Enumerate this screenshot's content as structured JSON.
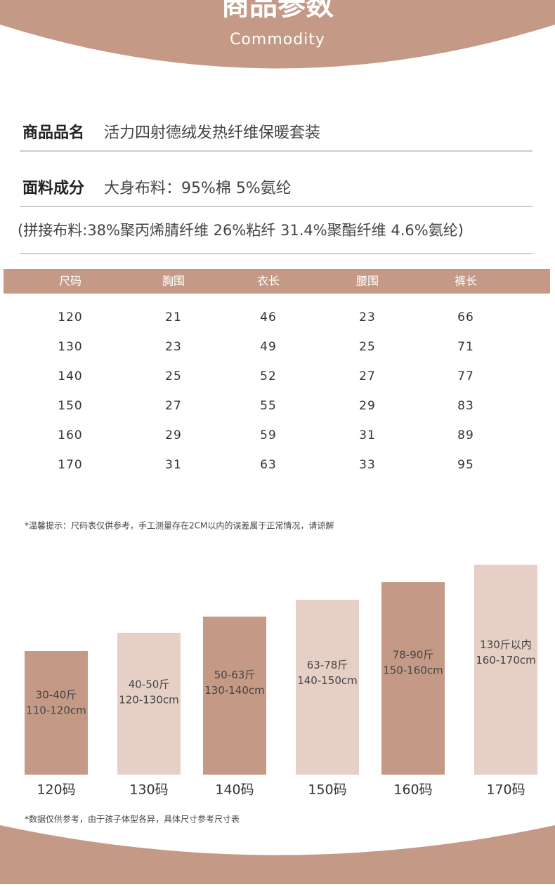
{
  "header": {
    "title": "商品参数",
    "subtitle": "Commodity"
  },
  "info": [
    {
      "label": "商品品名",
      "value": "活力四射德绒发热纤维保暖套装"
    },
    {
      "label": "面料成分",
      "value": "大身布料：95%棉 5%氨纶"
    }
  ],
  "info_note": "(拼接布料:38%聚丙烯腈纤维 26%粘纤 31.4%聚酯纤维 4.6%氨纶)",
  "table": {
    "header": [
      "尺码",
      "胸围",
      "衣长",
      "腰围",
      "裤长"
    ],
    "rows": [
      [
        120,
        21,
        46,
        23,
        66
      ],
      [
        130,
        23,
        49,
        25,
        71
      ],
      [
        140,
        25,
        52,
        27,
        77
      ],
      [
        150,
        27,
        55,
        29,
        83
      ],
      [
        160,
        29,
        59,
        31,
        89
      ],
      [
        170,
        31,
        63,
        33,
        95
      ]
    ]
  },
  "tip": "*温馨提示：尺码表仅供参考，手工测量存在2CM以内的误差属于正常情况，请谅解",
  "sizes": [
    {
      "weight": "30-40斤",
      "height": "110-120cm",
      "label": "120码"
    },
    {
      "weight": "40-50斤",
      "height": "120-130cm",
      "label": "130码"
    },
    {
      "weight": "50-63斤",
      "height": "130-140cm",
      "label": "140码"
    },
    {
      "weight": "63-78斤",
      "height": "140-150cm",
      "label": "150码"
    },
    {
      "weight": "78-90斤",
      "height": "150-160cm",
      "label": "160码"
    },
    {
      "weight": "130斤以内",
      "height": "160-170cm",
      "label": "170码"
    }
  ],
  "footnote": "*数据仅供参考，由于孩子体型各异，具体尺寸参考尺寸表"
}
